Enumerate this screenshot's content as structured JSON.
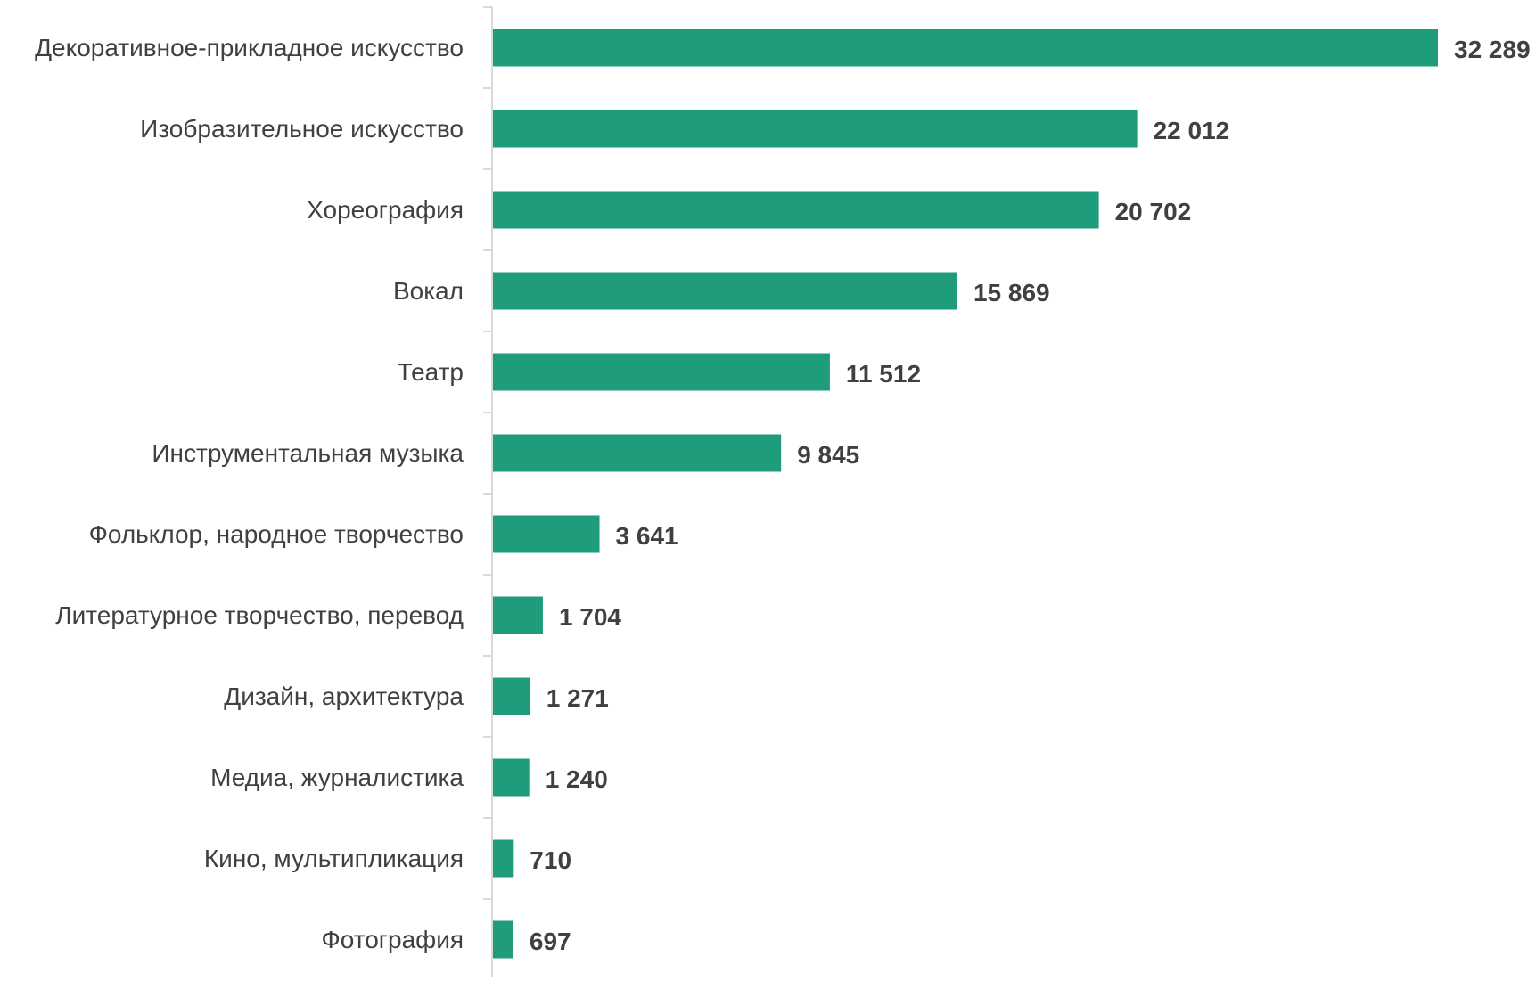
{
  "chart_data": {
    "type": "bar",
    "orientation": "horizontal",
    "categories": [
      "Декоративное-прикладное искусство",
      "Изобразительное искусство",
      "Хореография",
      "Вокал",
      "Театр",
      "Инструментальная музыка",
      "Фольклор, народное творчество",
      "Литературное творчество, перевод",
      "Дизайн, архитектура",
      "Медиа, журналистика",
      "Кино, мультипликация",
      "Фотография"
    ],
    "values": [
      32289,
      22012,
      20702,
      15869,
      11512,
      9845,
      3641,
      1704,
      1271,
      1240,
      710,
      697
    ],
    "value_labels": [
      "32 289",
      "22 012",
      "20 702",
      "15 869",
      "11 512",
      "9 845",
      "3 641",
      "1 704",
      "1 271",
      "1 240",
      "710",
      "697"
    ],
    "title": "",
    "xlabel": "",
    "ylabel": "",
    "xlim": [
      0,
      32289
    ],
    "grid": false,
    "legend": "none",
    "bar_color": "#1f9c7b",
    "label_color": "#404040",
    "axis_color": "#d9d9d9"
  }
}
